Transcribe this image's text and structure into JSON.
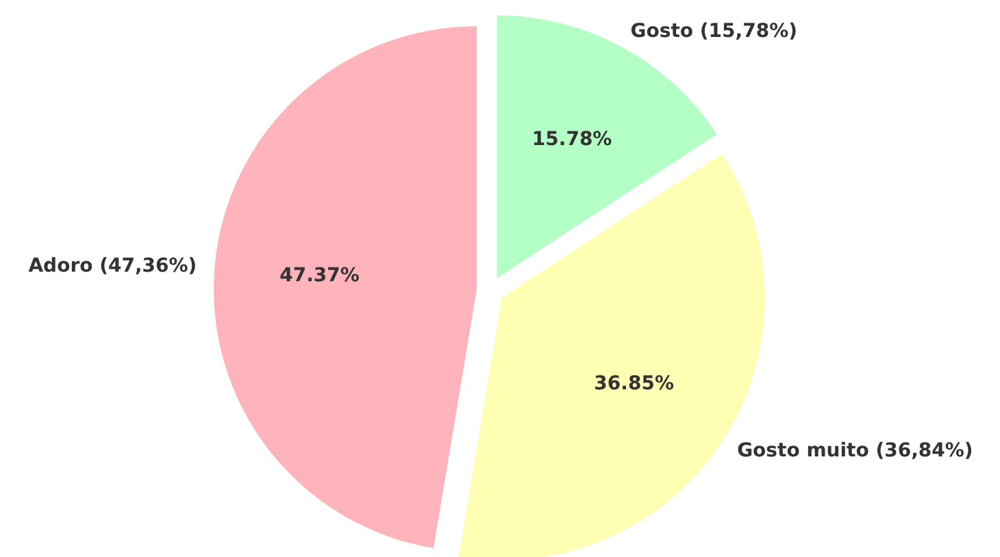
{
  "chart_data": {
    "type": "pie",
    "categories": [
      "Gosto (15,78%)",
      "Gosto muito (36,84%)",
      "Adoro (47,36%)"
    ],
    "values": [
      15.78,
      36.85,
      47.37
    ],
    "value_labels": [
      "15.78%",
      "36.85%",
      "47.37%"
    ],
    "colors": [
      "#b3ffc6",
      "#ffffb3",
      "#ffb3ba"
    ]
  }
}
